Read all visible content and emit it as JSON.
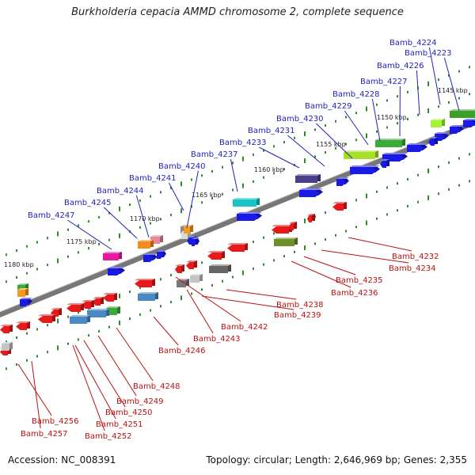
{
  "title": "Burkholderia cepacia AMMD chromosome 2, complete sequence",
  "accession": "Accession: NC_008391",
  "topology": "Topology: circular; Length: 2,646,969 bp; Genes: 2,355",
  "colors": {
    "top_label": "#2222bb",
    "bottom_label": "#bb1111",
    "backbone": "#777777",
    "tick": "#2e8b2e"
  },
  "kbp_markers": [
    "1145 kbp",
    "1150 kbp",
    "1155 kbp",
    "1160 kbp",
    "1165 kbp",
    "1170 kbp",
    "1175 kbp",
    "1180 kbp"
  ],
  "top_genes": [
    "Bamb_4224",
    "Bamb_4223",
    "Bamb_4226",
    "Bamb_4227",
    "Bamb_4228",
    "Bamb_4229",
    "Bamb_4230",
    "Bamb_4231",
    "Bamb_4233",
    "Bamb_4237",
    "Bamb_4240",
    "Bamb_4241",
    "Bamb_4244",
    "Bamb_4245",
    "Bamb_4247"
  ],
  "bottom_genes": [
    "Bamb_4232",
    "Bamb_4234",
    "Bamb_4235",
    "Bamb_4236",
    "Bamb_4238",
    "Bamb_4239",
    "Bamb_4242",
    "Bamb_4243",
    "Bamb_4246",
    "Bamb_4248",
    "Bamb_4249",
    "Bamb_4250",
    "Bamb_4251",
    "Bamb_4252",
    "Bamb_4256",
    "Bamb_4257"
  ]
}
